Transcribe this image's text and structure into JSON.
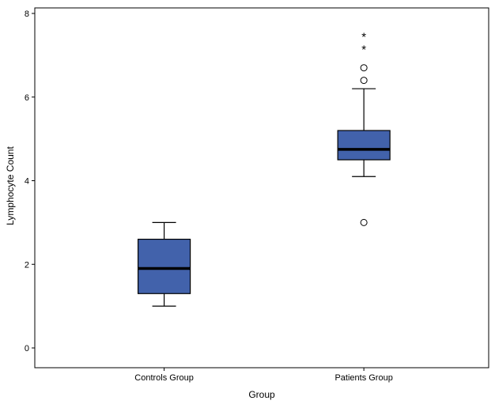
{
  "chart_data": {
    "type": "boxplot",
    "title": "",
    "xlabel": "Group",
    "ylabel": "Lymphocyte Count",
    "ylim": [
      0,
      8
    ],
    "yticks": [
      0,
      2,
      4,
      6,
      8
    ],
    "categories": [
      "Controls Group",
      "Patients Group"
    ],
    "series": [
      {
        "name": "Controls Group",
        "whisker_low": 1.0,
        "q1": 1.3,
        "median": 1.9,
        "q3": 2.6,
        "whisker_high": 3.0,
        "outliers": [],
        "extremes": []
      },
      {
        "name": "Patients Group",
        "whisker_low": 4.1,
        "q1": 4.5,
        "median": 4.75,
        "q3": 5.2,
        "whisker_high": 6.2,
        "outliers": [
          6.7,
          6.4,
          3.0
        ],
        "extremes": [
          7.5,
          7.2
        ]
      }
    ],
    "box_color": "#4262ab",
    "frame_color": "#000000",
    "grid": false,
    "legend": false
  }
}
